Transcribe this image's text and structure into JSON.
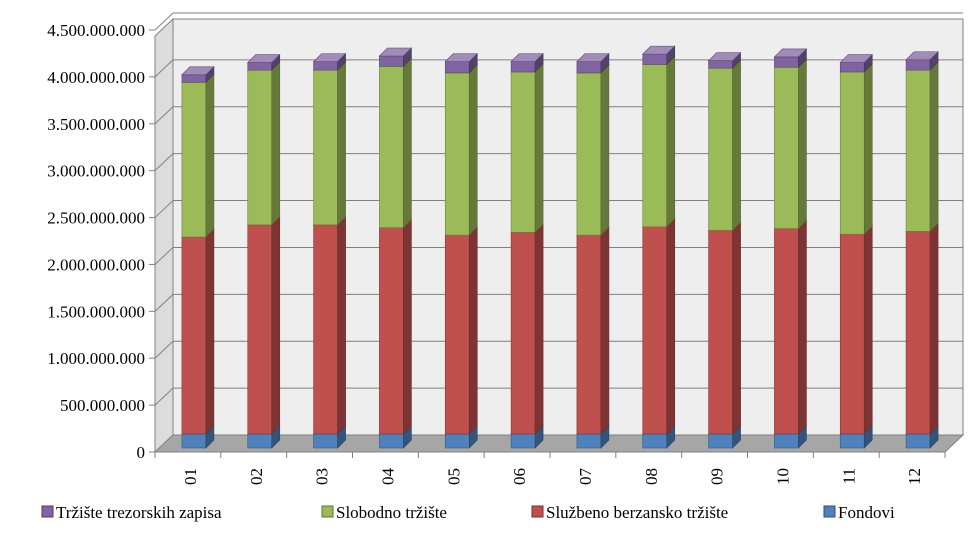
{
  "chart_data": {
    "type": "bar",
    "stacked": true,
    "three_d": true,
    "categories": [
      "01",
      "02",
      "03",
      "04",
      "05",
      "06",
      "07",
      "08",
      "09",
      "10",
      "11",
      "12"
    ],
    "series": [
      {
        "name": "Fondovi",
        "color": "#4f81bd",
        "values": [
          150000000,
          150000000,
          150000000,
          150000000,
          150000000,
          150000000,
          150000000,
          150000000,
          150000000,
          150000000,
          150000000,
          150000000
        ]
      },
      {
        "name": "Službeno berzansko tržište",
        "color": "#c0504d",
        "values": [
          2100000000,
          2230000000,
          2230000000,
          2200000000,
          2120000000,
          2150000000,
          2120000000,
          2210000000,
          2170000000,
          2190000000,
          2130000000,
          2160000000
        ]
      },
      {
        "name": "Slobodno tržište",
        "color": "#9bbb59",
        "values": [
          1650000000,
          1650000000,
          1650000000,
          1720000000,
          1730000000,
          1710000000,
          1730000000,
          1730000000,
          1730000000,
          1720000000,
          1730000000,
          1720000000
        ]
      },
      {
        "name": "Tržište trezorskih zapisa",
        "color": "#8064a2",
        "values": [
          80000000,
          80000000,
          90000000,
          110000000,
          120000000,
          110000000,
          120000000,
          110000000,
          80000000,
          110000000,
          100000000,
          110000000
        ]
      }
    ],
    "y_ticks": [
      "0",
      "500.000.000",
      "1.000.000.000",
      "1.500.000.000",
      "2.000.000.000",
      "2.500.000.000",
      "3.000.000.000",
      "3.500.000.000",
      "4.000.000.000",
      "4.500.000.000"
    ],
    "ylim": [
      0,
      4500000000
    ],
    "grid": true,
    "legend_position": "bottom",
    "legend_order": [
      "Tržište trezorskih zapisa",
      "Slobodno tržište",
      "Službeno berzansko tržište",
      "Fondovi"
    ],
    "wall_color": "#eeeeee",
    "floor_color": "#a6a6a6",
    "title": "",
    "xlabel": "",
    "ylabel": ""
  }
}
